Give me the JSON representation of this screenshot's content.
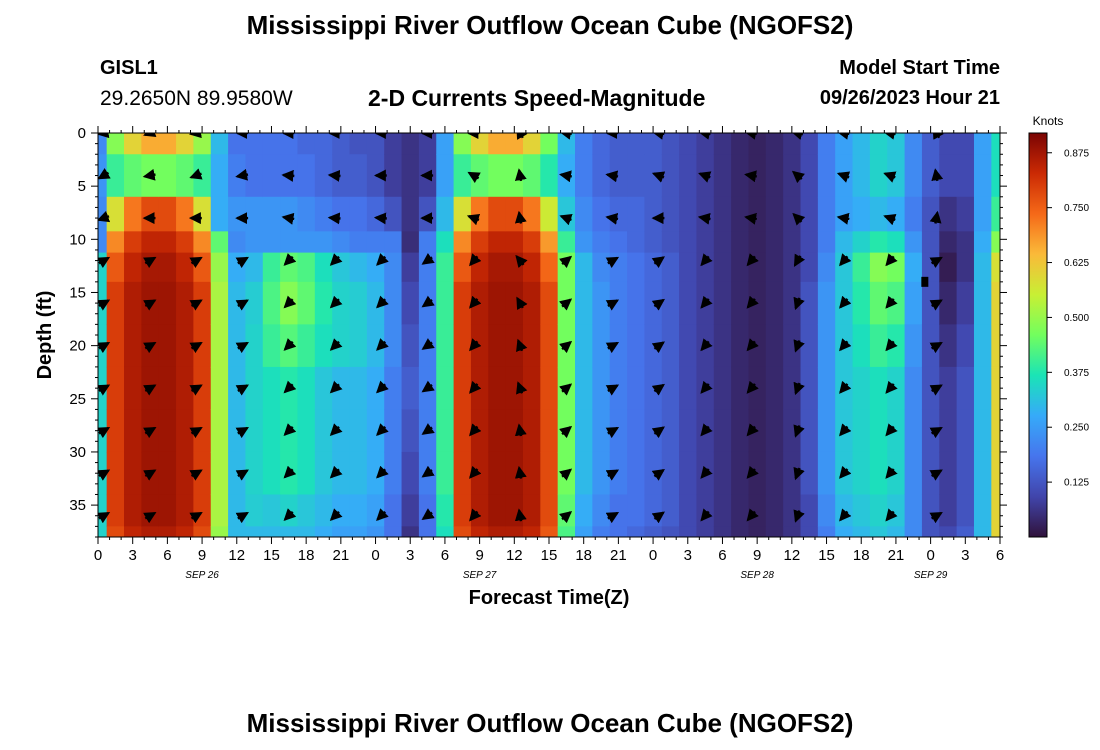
{
  "header": {
    "title": "Mississippi River Outflow Ocean Cube (NGOFS2)",
    "station": "GISL1",
    "coords": "29.2650N  89.9580W",
    "subtitle": "2-D Currents Speed-Magnitude",
    "model_start_label": "Model Start Time",
    "model_start_value": "09/26/2023 Hour 21",
    "repeat_title": "Mississippi River Outflow Ocean Cube (NGOFS2)"
  },
  "chart_data": {
    "type": "heatmap",
    "title": "2-D Currents Speed-Magnitude",
    "xlabel": "Forecast Time(Z)",
    "ylabel": "Depth (ft)",
    "x_range": [
      0,
      78
    ],
    "y_range": [
      0,
      38
    ],
    "x_ticks": [
      {
        "hour": 0,
        "label": "0"
      },
      {
        "hour": 3,
        "label": "3"
      },
      {
        "hour": 6,
        "label": "6"
      },
      {
        "hour": 9,
        "label": "9"
      },
      {
        "hour": 12,
        "label": "12"
      },
      {
        "hour": 15,
        "label": "15"
      },
      {
        "hour": 18,
        "label": "18"
      },
      {
        "hour": 21,
        "label": "21"
      },
      {
        "hour": 24,
        "label": "0"
      },
      {
        "hour": 27,
        "label": "3"
      },
      {
        "hour": 30,
        "label": "6"
      },
      {
        "hour": 33,
        "label": "9"
      },
      {
        "hour": 36,
        "label": "12"
      },
      {
        "hour": 39,
        "label": "15"
      },
      {
        "hour": 42,
        "label": "18"
      },
      {
        "hour": 45,
        "label": "21"
      },
      {
        "hour": 48,
        "label": "0"
      },
      {
        "hour": 51,
        "label": "3"
      },
      {
        "hour": 54,
        "label": "6"
      },
      {
        "hour": 57,
        "label": "9"
      },
      {
        "hour": 60,
        "label": "12"
      },
      {
        "hour": 63,
        "label": "15"
      },
      {
        "hour": 66,
        "label": "18"
      },
      {
        "hour": 69,
        "label": "21"
      },
      {
        "hour": 72,
        "label": "0"
      },
      {
        "hour": 75,
        "label": "3"
      },
      {
        "hour": 78,
        "label": "6"
      }
    ],
    "y_ticks": [
      0,
      5,
      10,
      15,
      20,
      25,
      30,
      35
    ],
    "date_labels": [
      {
        "hour": 9,
        "label": "SEP 26"
      },
      {
        "hour": 33,
        "label": "SEP 27"
      },
      {
        "hour": 57,
        "label": "SEP 28"
      },
      {
        "hour": 72,
        "label": "SEP 29"
      }
    ],
    "colorbar": {
      "label": "Knots",
      "range": [
        0,
        0.92
      ],
      "ticks": [
        0.125,
        0.25,
        0.375,
        0.5,
        0.625,
        0.75,
        0.875
      ],
      "tick_labels": [
        "0.125",
        "0.250",
        "0.375",
        "0.500",
        "0.625",
        "0.750",
        "0.875"
      ]
    },
    "speed_profile": {
      "hours": [
        0,
        1.5,
        3,
        4.5,
        6,
        7.5,
        9,
        10.5,
        12,
        13.5,
        15,
        16.5,
        18,
        19.5,
        21,
        22.5,
        24,
        25.5,
        27,
        28.5,
        30,
        31.5,
        33,
        34.5,
        36,
        37.5,
        39,
        40.5,
        42,
        43.5,
        45,
        46.5,
        48,
        49.5,
        51,
        52.5,
        54,
        55.5,
        57,
        58.5,
        60,
        61.5,
        63,
        64.5,
        66,
        67.5,
        69,
        70.5,
        72,
        73.5,
        75,
        76.5,
        78
      ],
      "depths": [
        0,
        4,
        8,
        10.5,
        12,
        16,
        20,
        24,
        28,
        32,
        36,
        38
      ],
      "speeds": [
        [
          0.22,
          0.24,
          0.22,
          0.22,
          0.34,
          0.34,
          0.34,
          0.34,
          0.34,
          0.34,
          0.34,
          0.34
        ],
        [
          0.48,
          0.4,
          0.58,
          0.7,
          0.76,
          0.8,
          0.8,
          0.8,
          0.8,
          0.8,
          0.8,
          0.78
        ],
        [
          0.6,
          0.44,
          0.72,
          0.8,
          0.84,
          0.86,
          0.86,
          0.86,
          0.86,
          0.86,
          0.86,
          0.84
        ],
        [
          0.66,
          0.46,
          0.78,
          0.84,
          0.87,
          0.88,
          0.88,
          0.88,
          0.88,
          0.88,
          0.88,
          0.86
        ],
        [
          0.66,
          0.46,
          0.78,
          0.84,
          0.87,
          0.88,
          0.88,
          0.88,
          0.88,
          0.88,
          0.88,
          0.86
        ],
        [
          0.6,
          0.44,
          0.72,
          0.8,
          0.84,
          0.86,
          0.86,
          0.86,
          0.86,
          0.86,
          0.86,
          0.84
        ],
        [
          0.5,
          0.4,
          0.58,
          0.7,
          0.76,
          0.8,
          0.8,
          0.8,
          0.8,
          0.8,
          0.8,
          0.78
        ],
        [
          0.3,
          0.28,
          0.28,
          0.44,
          0.5,
          0.52,
          0.52,
          0.52,
          0.52,
          0.52,
          0.52,
          0.5
        ],
        [
          0.18,
          0.2,
          0.24,
          0.22,
          0.28,
          0.3,
          0.3,
          0.3,
          0.3,
          0.3,
          0.3,
          0.3
        ],
        [
          0.18,
          0.18,
          0.24,
          0.24,
          0.3,
          0.33,
          0.34,
          0.34,
          0.34,
          0.34,
          0.33,
          0.3
        ],
        [
          0.18,
          0.18,
          0.24,
          0.24,
          0.4,
          0.42,
          0.4,
          0.36,
          0.36,
          0.36,
          0.32,
          0.3
        ],
        [
          0.18,
          0.18,
          0.24,
          0.24,
          0.44,
          0.48,
          0.43,
          0.38,
          0.38,
          0.38,
          0.34,
          0.3
        ],
        [
          0.16,
          0.18,
          0.22,
          0.24,
          0.42,
          0.44,
          0.4,
          0.36,
          0.36,
          0.36,
          0.32,
          0.3
        ],
        [
          0.16,
          0.16,
          0.2,
          0.24,
          0.36,
          0.38,
          0.36,
          0.32,
          0.32,
          0.32,
          0.3,
          0.28
        ],
        [
          0.14,
          0.14,
          0.18,
          0.22,
          0.32,
          0.34,
          0.34,
          0.3,
          0.3,
          0.3,
          0.28,
          0.26
        ],
        [
          0.12,
          0.14,
          0.18,
          0.2,
          0.3,
          0.33,
          0.33,
          0.3,
          0.3,
          0.3,
          0.28,
          0.26
        ],
        [
          0.12,
          0.12,
          0.16,
          0.2,
          0.28,
          0.3,
          0.3,
          0.28,
          0.28,
          0.28,
          0.26,
          0.24
        ],
        [
          0.08,
          0.08,
          0.12,
          0.2,
          0.22,
          0.22,
          0.22,
          0.2,
          0.2,
          0.2,
          0.18,
          0.18
        ],
        [
          0.06,
          0.06,
          0.06,
          0.05,
          0.08,
          0.1,
          0.12,
          0.14,
          0.12,
          0.1,
          0.08,
          0.06
        ],
        [
          0.08,
          0.08,
          0.12,
          0.2,
          0.2,
          0.2,
          0.2,
          0.2,
          0.2,
          0.2,
          0.18,
          0.18
        ],
        [
          0.26,
          0.26,
          0.3,
          0.36,
          0.4,
          0.4,
          0.4,
          0.4,
          0.4,
          0.4,
          0.38,
          0.36
        ],
        [
          0.48,
          0.4,
          0.58,
          0.7,
          0.76,
          0.8,
          0.8,
          0.8,
          0.8,
          0.8,
          0.8,
          0.78
        ],
        [
          0.6,
          0.44,
          0.72,
          0.8,
          0.84,
          0.86,
          0.86,
          0.86,
          0.86,
          0.86,
          0.86,
          0.84
        ],
        [
          0.66,
          0.46,
          0.78,
          0.84,
          0.87,
          0.88,
          0.88,
          0.88,
          0.88,
          0.88,
          0.88,
          0.86
        ],
        [
          0.66,
          0.46,
          0.78,
          0.84,
          0.87,
          0.88,
          0.88,
          0.88,
          0.88,
          0.88,
          0.88,
          0.86
        ],
        [
          0.6,
          0.44,
          0.72,
          0.8,
          0.84,
          0.86,
          0.86,
          0.86,
          0.86,
          0.86,
          0.86,
          0.84
        ],
        [
          0.46,
          0.38,
          0.56,
          0.68,
          0.74,
          0.78,
          0.78,
          0.78,
          0.78,
          0.78,
          0.78,
          0.76
        ],
        [
          0.3,
          0.28,
          0.32,
          0.4,
          0.46,
          0.46,
          0.46,
          0.46,
          0.46,
          0.46,
          0.44,
          0.42
        ],
        [
          0.2,
          0.2,
          0.22,
          0.24,
          0.3,
          0.3,
          0.3,
          0.3,
          0.3,
          0.3,
          0.28,
          0.26
        ],
        [
          0.16,
          0.16,
          0.18,
          0.2,
          0.22,
          0.24,
          0.24,
          0.24,
          0.24,
          0.24,
          0.22,
          0.2
        ],
        [
          0.14,
          0.14,
          0.16,
          0.18,
          0.2,
          0.2,
          0.2,
          0.2,
          0.2,
          0.2,
          0.18,
          0.18
        ],
        [
          0.14,
          0.14,
          0.16,
          0.16,
          0.18,
          0.18,
          0.18,
          0.18,
          0.18,
          0.18,
          0.18,
          0.16
        ],
        [
          0.14,
          0.14,
          0.14,
          0.14,
          0.16,
          0.16,
          0.16,
          0.16,
          0.16,
          0.16,
          0.16,
          0.14
        ],
        [
          0.12,
          0.12,
          0.12,
          0.12,
          0.14,
          0.14,
          0.14,
          0.14,
          0.14,
          0.14,
          0.14,
          0.12
        ],
        [
          0.1,
          0.1,
          0.1,
          0.1,
          0.1,
          0.1,
          0.1,
          0.1,
          0.1,
          0.1,
          0.1,
          0.1
        ],
        [
          0.08,
          0.08,
          0.08,
          0.08,
          0.08,
          0.08,
          0.08,
          0.08,
          0.08,
          0.08,
          0.08,
          0.08
        ],
        [
          0.06,
          0.06,
          0.06,
          0.06,
          0.06,
          0.06,
          0.06,
          0.06,
          0.06,
          0.06,
          0.06,
          0.06
        ],
        [
          0.04,
          0.04,
          0.04,
          0.04,
          0.04,
          0.04,
          0.04,
          0.04,
          0.04,
          0.04,
          0.04,
          0.04
        ],
        [
          0.03,
          0.03,
          0.03,
          0.03,
          0.03,
          0.03,
          0.03,
          0.03,
          0.03,
          0.03,
          0.03,
          0.03
        ],
        [
          0.04,
          0.04,
          0.04,
          0.04,
          0.04,
          0.04,
          0.04,
          0.04,
          0.04,
          0.04,
          0.04,
          0.04
        ],
        [
          0.06,
          0.06,
          0.06,
          0.06,
          0.06,
          0.06,
          0.06,
          0.06,
          0.06,
          0.06,
          0.06,
          0.06
        ],
        [
          0.1,
          0.1,
          0.1,
          0.1,
          0.1,
          0.12,
          0.12,
          0.12,
          0.12,
          0.12,
          0.1,
          0.1
        ],
        [
          0.2,
          0.2,
          0.2,
          0.2,
          0.22,
          0.24,
          0.24,
          0.24,
          0.24,
          0.24,
          0.22,
          0.2
        ],
        [
          0.26,
          0.26,
          0.26,
          0.3,
          0.32,
          0.32,
          0.32,
          0.32,
          0.32,
          0.32,
          0.3,
          0.28
        ],
        [
          0.3,
          0.3,
          0.28,
          0.34,
          0.4,
          0.38,
          0.36,
          0.34,
          0.34,
          0.34,
          0.32,
          0.3
        ],
        [
          0.34,
          0.34,
          0.3,
          0.38,
          0.48,
          0.44,
          0.4,
          0.36,
          0.36,
          0.36,
          0.34,
          0.32
        ],
        [
          0.32,
          0.32,
          0.28,
          0.36,
          0.46,
          0.42,
          0.38,
          0.34,
          0.34,
          0.34,
          0.32,
          0.3
        ],
        [
          0.22,
          0.22,
          0.2,
          0.24,
          0.28,
          0.26,
          0.24,
          0.22,
          0.22,
          0.22,
          0.22,
          0.22
        ],
        [
          0.14,
          0.14,
          0.12,
          0.12,
          0.12,
          0.12,
          0.12,
          0.12,
          0.12,
          0.12,
          0.12,
          0.12
        ],
        [
          0.1,
          0.1,
          0.06,
          0.04,
          0.02,
          0.04,
          0.06,
          0.08,
          0.08,
          0.08,
          0.08,
          0.1
        ],
        [
          0.1,
          0.1,
          0.08,
          0.06,
          0.06,
          0.08,
          0.1,
          0.12,
          0.12,
          0.12,
          0.12,
          0.14
        ],
        [
          0.26,
          0.26,
          0.26,
          0.28,
          0.3,
          0.3,
          0.3,
          0.3,
          0.3,
          0.3,
          0.3,
          0.3
        ],
        [
          0.36,
          0.36,
          0.4,
          0.48,
          0.58,
          0.6,
          0.6,
          0.6,
          0.6,
          0.6,
          0.6,
          0.6
        ]
      ]
    },
    "vectors": {
      "depths": [
        0,
        4,
        8,
        12,
        16,
        20,
        24,
        28,
        32,
        36
      ],
      "columns": [
        {
          "hour": 0.5,
          "angles": [
            190,
            210,
            200,
            30,
            30,
            30,
            30,
            30,
            30,
            30
          ]
        },
        {
          "hour": 4.5,
          "angles": [
            200,
            190,
            180,
            30,
            30,
            30,
            30,
            30,
            30,
            30
          ]
        },
        {
          "hour": 8.5,
          "angles": [
            190,
            200,
            180,
            30,
            30,
            30,
            30,
            30,
            30,
            30
          ]
        },
        {
          "hour": 12.5,
          "angles": [
            180,
            190,
            180,
            30,
            30,
            30,
            30,
            30,
            30,
            30
          ]
        },
        {
          "hour": 16.5,
          "angles": [
            180,
            175,
            170,
            225,
            225,
            225,
            225,
            225,
            225,
            225
          ]
        },
        {
          "hour": 20.5,
          "angles": [
            180,
            175,
            175,
            225,
            225,
            225,
            225,
            225,
            225,
            225
          ]
        },
        {
          "hour": 24.5,
          "angles": [
            180,
            180,
            175,
            225,
            225,
            225,
            225,
            225,
            225,
            225
          ]
        },
        {
          "hour": 28.5,
          "angles": [
            180,
            180,
            180,
            215,
            215,
            215,
            215,
            215,
            215,
            215
          ]
        },
        {
          "hour": 32.5,
          "angles": [
            180,
            150,
            160,
            230,
            230,
            230,
            230,
            230,
            230,
            230
          ]
        },
        {
          "hour": 36.5,
          "angles": [
            120,
            100,
            100,
            130,
            120,
            110,
            110,
            100,
            100,
            100
          ]
        },
        {
          "hour": 40.5,
          "angles": [
            170,
            170,
            160,
            40,
            40,
            40,
            40,
            40,
            40,
            40
          ]
        },
        {
          "hour": 44.5,
          "angles": [
            180,
            170,
            170,
            30,
            30,
            30,
            30,
            30,
            30,
            30
          ]
        },
        {
          "hour": 48.5,
          "angles": [
            170,
            160,
            180,
            35,
            35,
            35,
            35,
            35,
            35,
            35
          ]
        },
        {
          "hour": 52.5,
          "angles": [
            170,
            160,
            170,
            230,
            230,
            230,
            230,
            230,
            230,
            230
          ]
        },
        {
          "hour": 56.5,
          "angles": [
            170,
            170,
            170,
            230,
            230,
            230,
            230,
            230,
            230,
            230
          ]
        },
        {
          "hour": 60.5,
          "angles": [
            165,
            140,
            135,
            240,
            250,
            250,
            250,
            250,
            250,
            250
          ]
        },
        {
          "hour": 64.5,
          "angles": [
            170,
            160,
            170,
            230,
            230,
            230,
            230,
            230,
            230,
            230
          ]
        },
        {
          "hour": 68.5,
          "angles": [
            170,
            160,
            160,
            230,
            230,
            230,
            230,
            230,
            230,
            230
          ]
        },
        {
          "hour": 72.5,
          "angles": [
            120,
            100,
            80,
            30,
            30,
            30,
            30,
            30,
            30,
            30
          ]
        }
      ]
    },
    "marker": {
      "hour": 71.5,
      "depth": 14
    }
  }
}
